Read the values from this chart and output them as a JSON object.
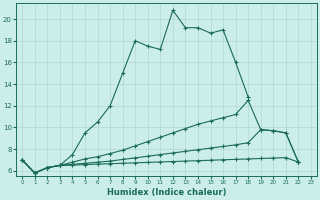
{
  "xlabel": "Humidex (Indice chaleur)",
  "xlim": [
    -0.5,
    23.5
  ],
  "ylim": [
    5.5,
    21.5
  ],
  "xticks": [
    0,
    1,
    2,
    3,
    4,
    5,
    6,
    7,
    8,
    9,
    10,
    11,
    12,
    13,
    14,
    15,
    16,
    17,
    18,
    19,
    20,
    21,
    22,
    23
  ],
  "yticks": [
    6,
    8,
    10,
    12,
    14,
    16,
    18,
    20
  ],
  "bg_color": "#cceee8",
  "line_color": "#1a6b5a",
  "grid_color": "#b0d8d0",
  "line1_x": [
    0,
    1,
    2,
    3,
    4,
    5,
    6,
    7,
    8,
    9,
    10,
    11,
    12,
    13,
    14,
    15,
    16,
    17,
    18
  ],
  "line1_y": [
    7.0,
    5.8,
    6.3,
    6.5,
    7.5,
    9.5,
    10.5,
    12.0,
    15.0,
    18.0,
    17.5,
    17.2,
    20.8,
    19.2,
    19.2,
    18.7,
    19.0,
    16.0,
    12.8
  ],
  "line2_x": [
    0,
    1,
    2,
    3,
    4,
    5,
    6,
    7,
    8,
    9,
    10,
    11,
    12,
    13,
    14,
    15,
    16,
    17,
    18,
    19,
    20,
    21,
    22
  ],
  "line2_y": [
    7.0,
    5.8,
    6.3,
    6.5,
    6.8,
    7.1,
    7.3,
    7.6,
    7.9,
    8.3,
    8.7,
    9.1,
    9.5,
    9.9,
    10.3,
    10.6,
    10.9,
    11.2,
    12.5,
    9.8,
    9.7,
    9.5,
    6.8
  ],
  "line3_x": [
    0,
    1,
    2,
    3,
    4,
    5,
    6,
    7,
    8,
    9,
    10,
    11,
    12,
    13,
    14,
    15,
    16,
    17,
    18,
    19,
    20,
    21,
    22
  ],
  "line3_y": [
    7.0,
    5.8,
    6.3,
    6.5,
    6.6,
    6.7,
    6.8,
    6.9,
    7.05,
    7.2,
    7.35,
    7.5,
    7.65,
    7.8,
    7.95,
    8.1,
    8.25,
    8.4,
    8.6,
    9.8,
    9.7,
    9.5,
    6.8
  ],
  "line4_x": [
    0,
    1,
    2,
    3,
    4,
    5,
    6,
    7,
    8,
    9,
    10,
    11,
    12,
    13,
    14,
    15,
    16,
    17,
    18,
    19,
    20,
    21,
    22
  ],
  "line4_y": [
    7.0,
    5.8,
    6.3,
    6.5,
    6.52,
    6.58,
    6.62,
    6.66,
    6.7,
    6.74,
    6.78,
    6.82,
    6.86,
    6.9,
    6.94,
    6.98,
    7.02,
    7.06,
    7.1,
    7.14,
    7.18,
    7.22,
    6.8
  ]
}
